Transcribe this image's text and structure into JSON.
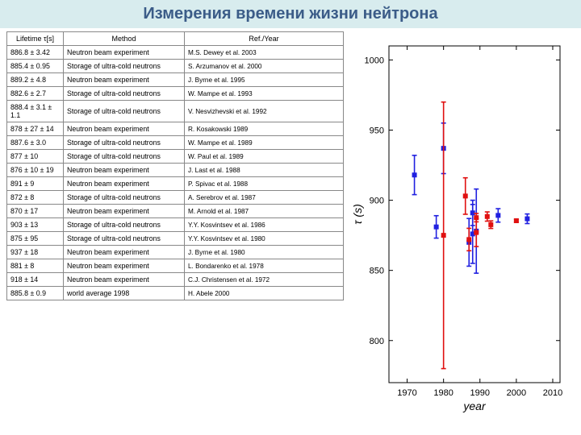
{
  "title": "Измерения времени жизни нейтрона",
  "table": {
    "headers": [
      "Lifetime τ[s]",
      "Method",
      "Ref./Year"
    ],
    "rows": [
      [
        "886.8 ± 3.42",
        "Neutron beam experiment",
        "M.S. Dewey et al. 2003"
      ],
      [
        "885.4 ± 0.95",
        "Storage of ultra-cold neutrons",
        "S. Arzumanov et al. 2000"
      ],
      [
        "889.2 ± 4.8",
        "Neutron beam experiment",
        "J. Byrne et al. 1995"
      ],
      [
        "882.6 ± 2.7",
        "Storage of ultra-cold neutrons",
        "W. Mampe et al. 1993"
      ],
      [
        "888.4 ± 3.1 ± 1.1",
        "Storage of ultra-cold neutrons",
        "V. Nesvizhevski et al. 1992"
      ],
      [
        "878 ± 27 ± 14",
        "Neutron beam experiment",
        "R. Kosakowski 1989"
      ],
      [
        "887.6 ± 3.0",
        "Storage of ultra-cold neutrons",
        "W. Mampe et al. 1989"
      ],
      [
        "877 ± 10",
        "Storage of ultra-cold neutrons",
        "W. Paul et al. 1989"
      ],
      [
        "876 ± 10 ± 19",
        "Neutron beam experiment",
        "J. Last et al. 1988"
      ],
      [
        "891 ± 9",
        "Neutron beam experiment",
        "P. Spivac et al. 1988"
      ],
      [
        "872 ± 8",
        "Storage of ultra-cold neutrons",
        "A. Serebrov et al. 1987"
      ],
      [
        "870 ± 17",
        "Neutron beam experiment",
        "M. Arnold et al. 1987"
      ],
      [
        "903 ± 13",
        "Storage of ultra-cold neutrons",
        "Y.Y. Kosvintsev et al. 1986"
      ],
      [
        "875 ± 95",
        "Storage of ultra-cold neutrons",
        "Y.Y. Kosvintsev et al. 1980"
      ],
      [
        "937 ± 18",
        "Neutron beam experiment",
        "J. Byrne et al. 1980"
      ],
      [
        "881 ± 8",
        "Neutron beam experiment",
        "L. Bondarenko et al. 1978"
      ],
      [
        "918 ± 14",
        "Neutron beam experiment",
        "C.J. Christensen et al. 1972"
      ],
      [
        "885.8 ± 0.9",
        "world average 1998",
        "H. Abele 2000"
      ]
    ]
  },
  "chart": {
    "type": "scatter",
    "background_color": "#ffffff",
    "xlabel": "year",
    "ylabel": "τ (s)",
    "label_fontsize": 14,
    "tick_fontsize": 11,
    "xlim": [
      1965,
      2012
    ],
    "ylim": [
      770,
      1010
    ],
    "yticks": [
      800,
      850,
      900,
      950,
      1000
    ],
    "xticks": [
      1970,
      1980,
      1990,
      2000,
      2010
    ],
    "grid": false,
    "marker_size": 5,
    "line_width": 1.6,
    "colors": {
      "beam": "#2020e0",
      "storage": "#e01010"
    },
    "points": [
      {
        "year": 1972,
        "tau": 918,
        "err": 14,
        "method": "beam"
      },
      {
        "year": 1978,
        "tau": 881,
        "err": 8,
        "method": "beam"
      },
      {
        "year": 1980,
        "tau": 937,
        "err": 18,
        "method": "beam"
      },
      {
        "year": 1980,
        "tau": 875,
        "err": 95,
        "method": "storage"
      },
      {
        "year": 1986,
        "tau": 903,
        "err": 13,
        "method": "storage"
      },
      {
        "year": 1987,
        "tau": 870,
        "err": 17,
        "method": "beam"
      },
      {
        "year": 1987,
        "tau": 872,
        "err": 8,
        "method": "storage"
      },
      {
        "year": 1988,
        "tau": 876,
        "err": 21,
        "method": "beam"
      },
      {
        "year": 1988,
        "tau": 891,
        "err": 9,
        "method": "beam"
      },
      {
        "year": 1989,
        "tau": 878,
        "err": 30,
        "method": "beam"
      },
      {
        "year": 1989,
        "tau": 887.6,
        "err": 3,
        "method": "storage"
      },
      {
        "year": 1989,
        "tau": 877,
        "err": 10,
        "method": "storage"
      },
      {
        "year": 1992,
        "tau": 888.4,
        "err": 3.3,
        "method": "storage"
      },
      {
        "year": 1993,
        "tau": 882.6,
        "err": 2.7,
        "method": "storage"
      },
      {
        "year": 1995,
        "tau": 889.2,
        "err": 4.8,
        "method": "beam"
      },
      {
        "year": 2000,
        "tau": 885.4,
        "err": 0.95,
        "method": "storage"
      },
      {
        "year": 2003,
        "tau": 886.8,
        "err": 3.42,
        "method": "beam"
      }
    ]
  }
}
